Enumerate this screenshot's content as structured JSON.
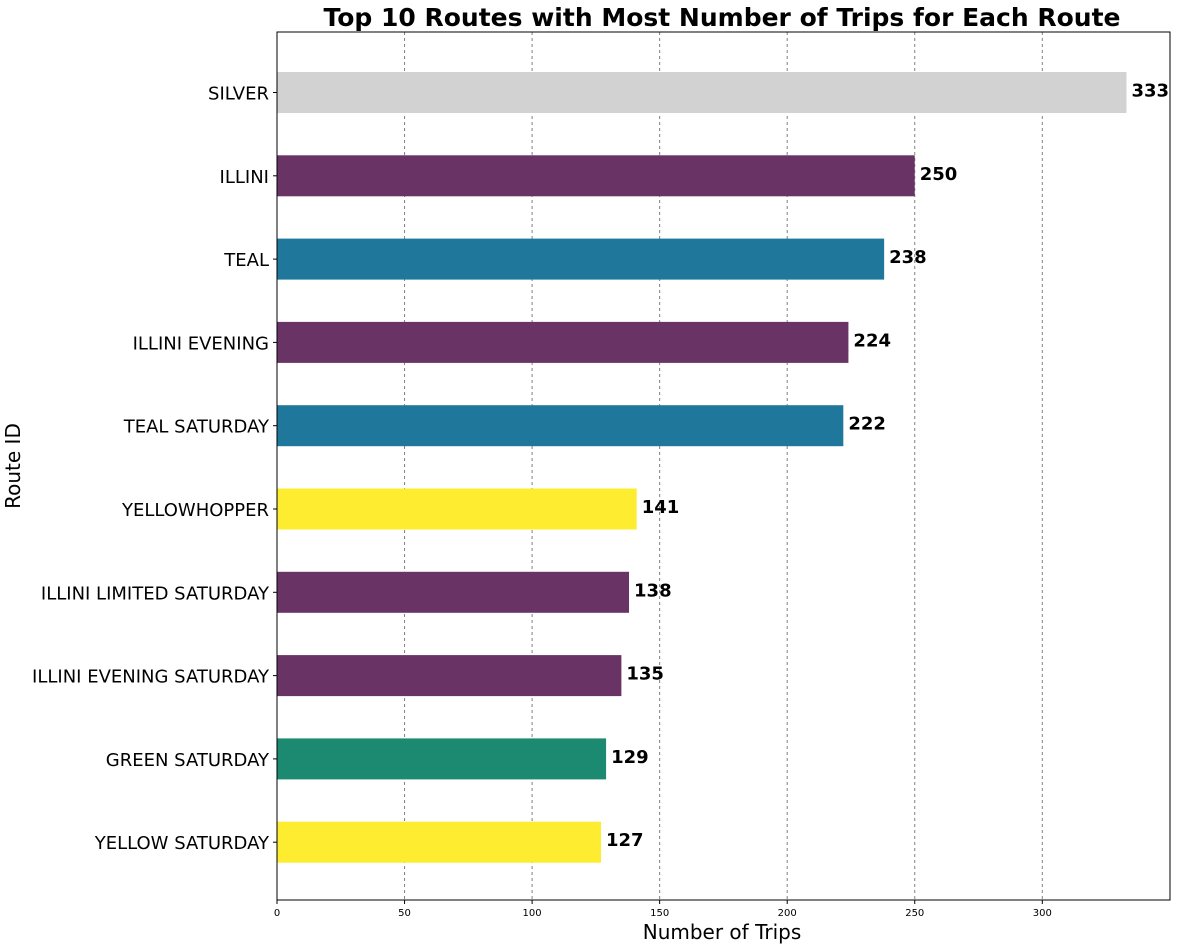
{
  "chart_data": {
    "type": "bar",
    "orientation": "horizontal",
    "title": "Top 10 Routes with Most Number of Trips for Each Route",
    "xlabel": "Number of Trips",
    "ylabel": "Route ID",
    "xlim": [
      0,
      350
    ],
    "xticks": [
      0,
      50,
      100,
      150,
      200,
      250,
      300
    ],
    "grid": "x-dashed",
    "categories": [
      "SILVER",
      "ILLINI",
      "TEAL",
      "ILLINI EVENING",
      "TEAL SATURDAY",
      "YELLOWHOPPER",
      "ILLINI LIMITED SATURDAY",
      "ILLINI EVENING SATURDAY",
      "GREEN SATURDAY",
      "YELLOW SATURDAY"
    ],
    "values": [
      333,
      250,
      238,
      224,
      222,
      141,
      138,
      135,
      129,
      127
    ],
    "colors": [
      "#d2d2d2",
      "#693365",
      "#1f779c",
      "#693365",
      "#1f779c",
      "#fdec30",
      "#693365",
      "#693365",
      "#1c8a70",
      "#fdec30"
    ]
  }
}
